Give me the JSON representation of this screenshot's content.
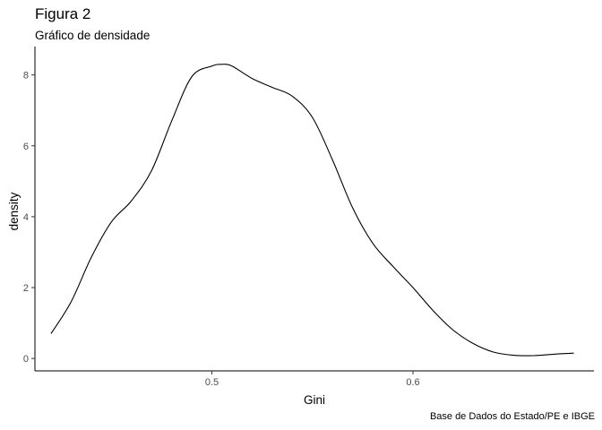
{
  "chart_data": {
    "type": "line",
    "title": "Figura 2",
    "subtitle": "Gráfico de densidade",
    "caption": "Base de Dados do Estado/PE e IBGE",
    "xlabel": "Gini",
    "ylabel": "density",
    "xlim": [
      0.412,
      0.69
    ],
    "ylim": [
      -0.35,
      8.8
    ],
    "xticks": [
      0.5,
      0.6
    ],
    "xtick_labels": [
      "0.5",
      "0.6"
    ],
    "yticks": [
      0,
      2,
      4,
      6,
      8
    ],
    "ytick_labels": [
      "0",
      "2",
      "4",
      "6",
      "8"
    ],
    "grid": false,
    "line_color": "#000000",
    "series": [
      {
        "x": [
          0.42,
          0.43,
          0.44,
          0.45,
          0.46,
          0.47,
          0.48,
          0.49,
          0.5,
          0.505,
          0.51,
          0.52,
          0.53,
          0.54,
          0.55,
          0.56,
          0.57,
          0.58,
          0.59,
          0.6,
          0.61,
          0.62,
          0.63,
          0.64,
          0.65,
          0.66,
          0.67,
          0.68
        ],
        "y": [
          0.7,
          1.6,
          2.85,
          3.85,
          4.45,
          5.3,
          6.7,
          7.95,
          8.25,
          8.3,
          8.25,
          7.9,
          7.65,
          7.4,
          6.8,
          5.6,
          4.25,
          3.25,
          2.6,
          2.0,
          1.35,
          0.8,
          0.42,
          0.18,
          0.09,
          0.08,
          0.12,
          0.15
        ]
      }
    ]
  }
}
